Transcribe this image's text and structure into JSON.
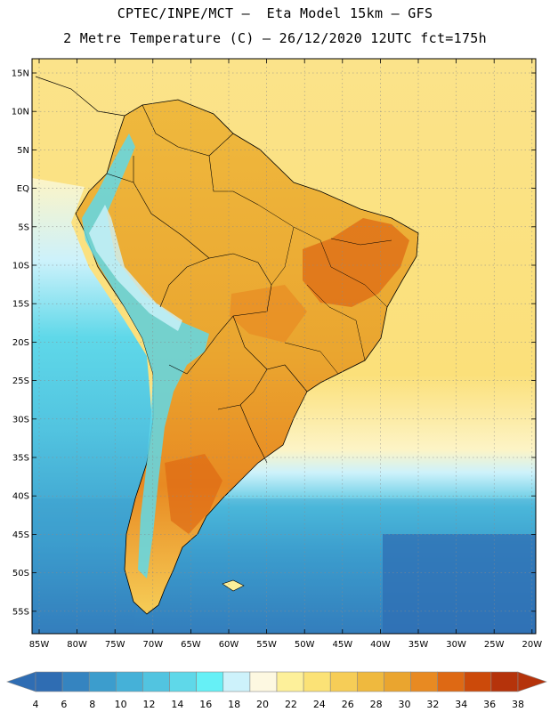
{
  "header": {
    "line1": "CPTEC/INPE/MCT –  Eta Model 15km – GFS",
    "line2": "2 Metre Temperature (C) – 26/12/2020 12UTC fct=175h"
  },
  "map": {
    "lat_labels": [
      "15N",
      "10N",
      "5N",
      "EQ",
      "5S",
      "10S",
      "15S",
      "20S",
      "25S",
      "30S",
      "35S",
      "40S",
      "45S",
      "50S",
      "55S"
    ],
    "lon_labels": [
      "85W",
      "80W",
      "75W",
      "70W",
      "65W",
      "60W",
      "55W",
      "50W",
      "45W",
      "40W",
      "35W",
      "30W",
      "25W",
      "20W"
    ]
  },
  "colorbar": {
    "labels": [
      "4",
      "6",
      "8",
      "10",
      "12",
      "14",
      "16",
      "18",
      "20",
      "22",
      "24",
      "26",
      "28",
      "30",
      "32",
      "34",
      "36",
      "38"
    ],
    "colors": [
      "#2f6db3",
      "#3584c0",
      "#3c9dcd",
      "#45b1d8",
      "#52c4e0",
      "#5fd8e9",
      "#66f0f6",
      "#cdf2fb",
      "#fdf8e1",
      "#fdf09a",
      "#fbe276",
      "#f6cd57",
      "#efb93e",
      "#eaa52f",
      "#e88a22",
      "#de6914",
      "#cc4a0a",
      "#b5330b"
    ]
  }
}
